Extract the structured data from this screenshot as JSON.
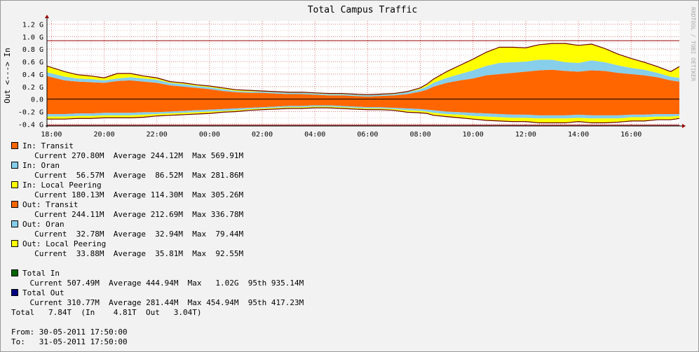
{
  "watermark": "RRDTOOL / TOBI OETIKER",
  "chart_data": {
    "type": "area",
    "title": "Total Campus Traffic",
    "ylabel": "Out <---> In",
    "ytick_labels": [
      "1.2 G",
      "1.0 G",
      "0.8 G",
      "0.6 G",
      "0.4 G",
      "0.2 G",
      "0.0",
      "-0.2 G",
      "-0.4 G"
    ],
    "ytick_values": [
      1.2,
      1.0,
      0.8,
      0.6,
      0.4,
      0.2,
      0.0,
      -0.2,
      -0.4
    ],
    "ylim": [
      -0.43,
      1.25
    ],
    "xtick_labels": [
      "18:00",
      "20:00",
      "22:00",
      "00:00",
      "02:00",
      "04:00",
      "06:00",
      "08:00",
      "10:00",
      "12:00",
      "14:00",
      "16:00"
    ],
    "xtick_hours": [
      18,
      20,
      22,
      24,
      26,
      28,
      30,
      32,
      34,
      36,
      38,
      40
    ],
    "xlim_hours": [
      17.83,
      41.83
    ],
    "hrule_values": [
      0.935,
      -0.417
    ],
    "hrule_color": "#990000",
    "x_hours": [
      17.83,
      18.5,
      19,
      19.5,
      20,
      20.5,
      21,
      21.5,
      22,
      22.5,
      23,
      23.5,
      24,
      24.5,
      25,
      25.5,
      26,
      26.5,
      27,
      27.5,
      28,
      28.5,
      29,
      29.5,
      30,
      30.5,
      31,
      31.5,
      32,
      32.25,
      32.5,
      33,
      33.5,
      34,
      34.5,
      35,
      35.5,
      36,
      36.5,
      37,
      37.5,
      38,
      38.5,
      39,
      39.5,
      40,
      40.5,
      41,
      41.5,
      41.83
    ],
    "series": [
      {
        "name": "In: Transit",
        "color": "#ff6600",
        "values": [
          0.37,
          0.3,
          0.28,
          0.27,
          0.26,
          0.29,
          0.3,
          0.28,
          0.26,
          0.22,
          0.2,
          0.18,
          0.16,
          0.13,
          0.11,
          0.1,
          0.1,
          0.09,
          0.08,
          0.08,
          0.07,
          0.06,
          0.06,
          0.05,
          0.04,
          0.05,
          0.06,
          0.08,
          0.12,
          0.15,
          0.2,
          0.26,
          0.3,
          0.33,
          0.38,
          0.4,
          0.42,
          0.44,
          0.46,
          0.47,
          0.45,
          0.44,
          0.46,
          0.45,
          0.42,
          0.4,
          0.38,
          0.35,
          0.3,
          0.28
        ]
      },
      {
        "name": "In: Oran",
        "color": "#87ceeb",
        "values": [
          0.06,
          0.06,
          0.05,
          0.05,
          0.04,
          0.04,
          0.05,
          0.05,
          0.05,
          0.04,
          0.04,
          0.03,
          0.03,
          0.03,
          0.02,
          0.02,
          0.02,
          0.02,
          0.02,
          0.02,
          0.02,
          0.02,
          0.02,
          0.02,
          0.02,
          0.02,
          0.02,
          0.03,
          0.04,
          0.05,
          0.06,
          0.08,
          0.1,
          0.13,
          0.15,
          0.18,
          0.17,
          0.16,
          0.17,
          0.16,
          0.14,
          0.14,
          0.16,
          0.14,
          0.12,
          0.1,
          0.09,
          0.07,
          0.06,
          0.06
        ]
      },
      {
        "name": "In: Local Peering",
        "color": "#ffff00",
        "values": [
          0.1,
          0.08,
          0.06,
          0.05,
          0.04,
          0.08,
          0.06,
          0.04,
          0.03,
          0.02,
          0.02,
          0.02,
          0.02,
          0.02,
          0.02,
          0.02,
          0.01,
          0.01,
          0.01,
          0.01,
          0.01,
          0.01,
          0.01,
          0.01,
          0.01,
          0.01,
          0.01,
          0.01,
          0.02,
          0.04,
          0.06,
          0.1,
          0.14,
          0.18,
          0.22,
          0.25,
          0.24,
          0.22,
          0.24,
          0.26,
          0.3,
          0.28,
          0.26,
          0.22,
          0.18,
          0.15,
          0.12,
          0.1,
          0.08,
          0.18
        ]
      },
      {
        "name": "Out: Transit",
        "color": "#ff6600",
        "values": [
          -0.24,
          -0.24,
          -0.23,
          -0.23,
          -0.22,
          -0.22,
          -0.22,
          -0.21,
          -0.21,
          -0.2,
          -0.19,
          -0.18,
          -0.17,
          -0.16,
          -0.15,
          -0.14,
          -0.13,
          -0.12,
          -0.11,
          -0.11,
          -0.1,
          -0.1,
          -0.11,
          -0.12,
          -0.13,
          -0.13,
          -0.14,
          -0.15,
          -0.16,
          -0.17,
          -0.18,
          -0.2,
          -0.21,
          -0.22,
          -0.23,
          -0.24,
          -0.25,
          -0.25,
          -0.26,
          -0.26,
          -0.26,
          -0.25,
          -0.26,
          -0.26,
          -0.26,
          -0.25,
          -0.25,
          -0.24,
          -0.24,
          -0.24
        ]
      },
      {
        "name": "Out: Oran",
        "color": "#87ceeb",
        "values": [
          -0.04,
          -0.04,
          -0.04,
          -0.04,
          -0.04,
          -0.04,
          -0.04,
          -0.04,
          -0.03,
          -0.03,
          -0.03,
          -0.03,
          -0.03,
          -0.03,
          -0.03,
          -0.02,
          -0.02,
          -0.02,
          -0.02,
          -0.02,
          -0.02,
          -0.02,
          -0.02,
          -0.02,
          -0.02,
          -0.02,
          -0.02,
          -0.03,
          -0.03,
          -0.03,
          -0.04,
          -0.04,
          -0.04,
          -0.05,
          -0.05,
          -0.05,
          -0.05,
          -0.05,
          -0.05,
          -0.05,
          -0.05,
          -0.05,
          -0.05,
          -0.05,
          -0.05,
          -0.04,
          -0.04,
          -0.04,
          -0.04,
          -0.03
        ]
      },
      {
        "name": "Out: Local Peering",
        "color": "#ffff00",
        "values": [
          -0.04,
          -0.04,
          -0.04,
          -0.04,
          -0.04,
          -0.04,
          -0.04,
          -0.04,
          -0.03,
          -0.03,
          -0.03,
          -0.03,
          -0.03,
          -0.02,
          -0.02,
          -0.02,
          -0.02,
          -0.02,
          -0.02,
          -0.02,
          -0.02,
          -0.02,
          -0.02,
          -0.02,
          -0.02,
          -0.02,
          -0.02,
          -0.03,
          -0.03,
          -0.03,
          -0.04,
          -0.04,
          -0.05,
          -0.05,
          -0.06,
          -0.06,
          -0.06,
          -0.06,
          -0.07,
          -0.07,
          -0.07,
          -0.06,
          -0.07,
          -0.07,
          -0.06,
          -0.06,
          -0.06,
          -0.05,
          -0.05,
          -0.04
        ]
      }
    ]
  },
  "legend": [
    {
      "label": "In: Transit",
      "color": "#ff6600",
      "current": "270.80M",
      "average": "244.12M",
      "max": "569.91M"
    },
    {
      "label": "In: Oran",
      "color": "#87ceeb",
      "current": " 56.57M",
      "average": " 86.52M",
      "max": "281.86M"
    },
    {
      "label": "In: Local Peering",
      "color": "#ffff00",
      "current": "180.13M",
      "average": "114.30M",
      "max": "305.26M"
    },
    {
      "label": "Out: Transit",
      "color": "#ff6600",
      "current": "244.11M",
      "average": "212.69M",
      "max": "336.78M"
    },
    {
      "label": "Out: Oran",
      "color": "#87ceeb",
      "current": " 32.78M",
      "average": " 32.94M",
      "max": " 79.44M"
    },
    {
      "label": "Out: Local Peering",
      "color": "#ffff00",
      "current": " 33.88M",
      "average": " 35.81M",
      "max": " 92.55M"
    }
  ],
  "labels": {
    "current": "Current",
    "average": "Average",
    "max": "Max",
    "p95": "95th"
  },
  "totals": [
    {
      "label": "Total In",
      "color": "#006400",
      "current": "507.49M",
      "average": "444.94M",
      "max": "  1.02G",
      "p95": "935.14M"
    },
    {
      "label": "Total Out",
      "color": "#000080",
      "current": "310.77M",
      "average": "281.44M",
      "max": "454.94M",
      "p95": "417.23M"
    }
  ],
  "total_line": "Total   7.84T  (In    4.81T  Out   3.04T)",
  "from_line": "From: 30-05-2011 17:50:00",
  "to_line": "To:   31-05-2011 17:50:00"
}
